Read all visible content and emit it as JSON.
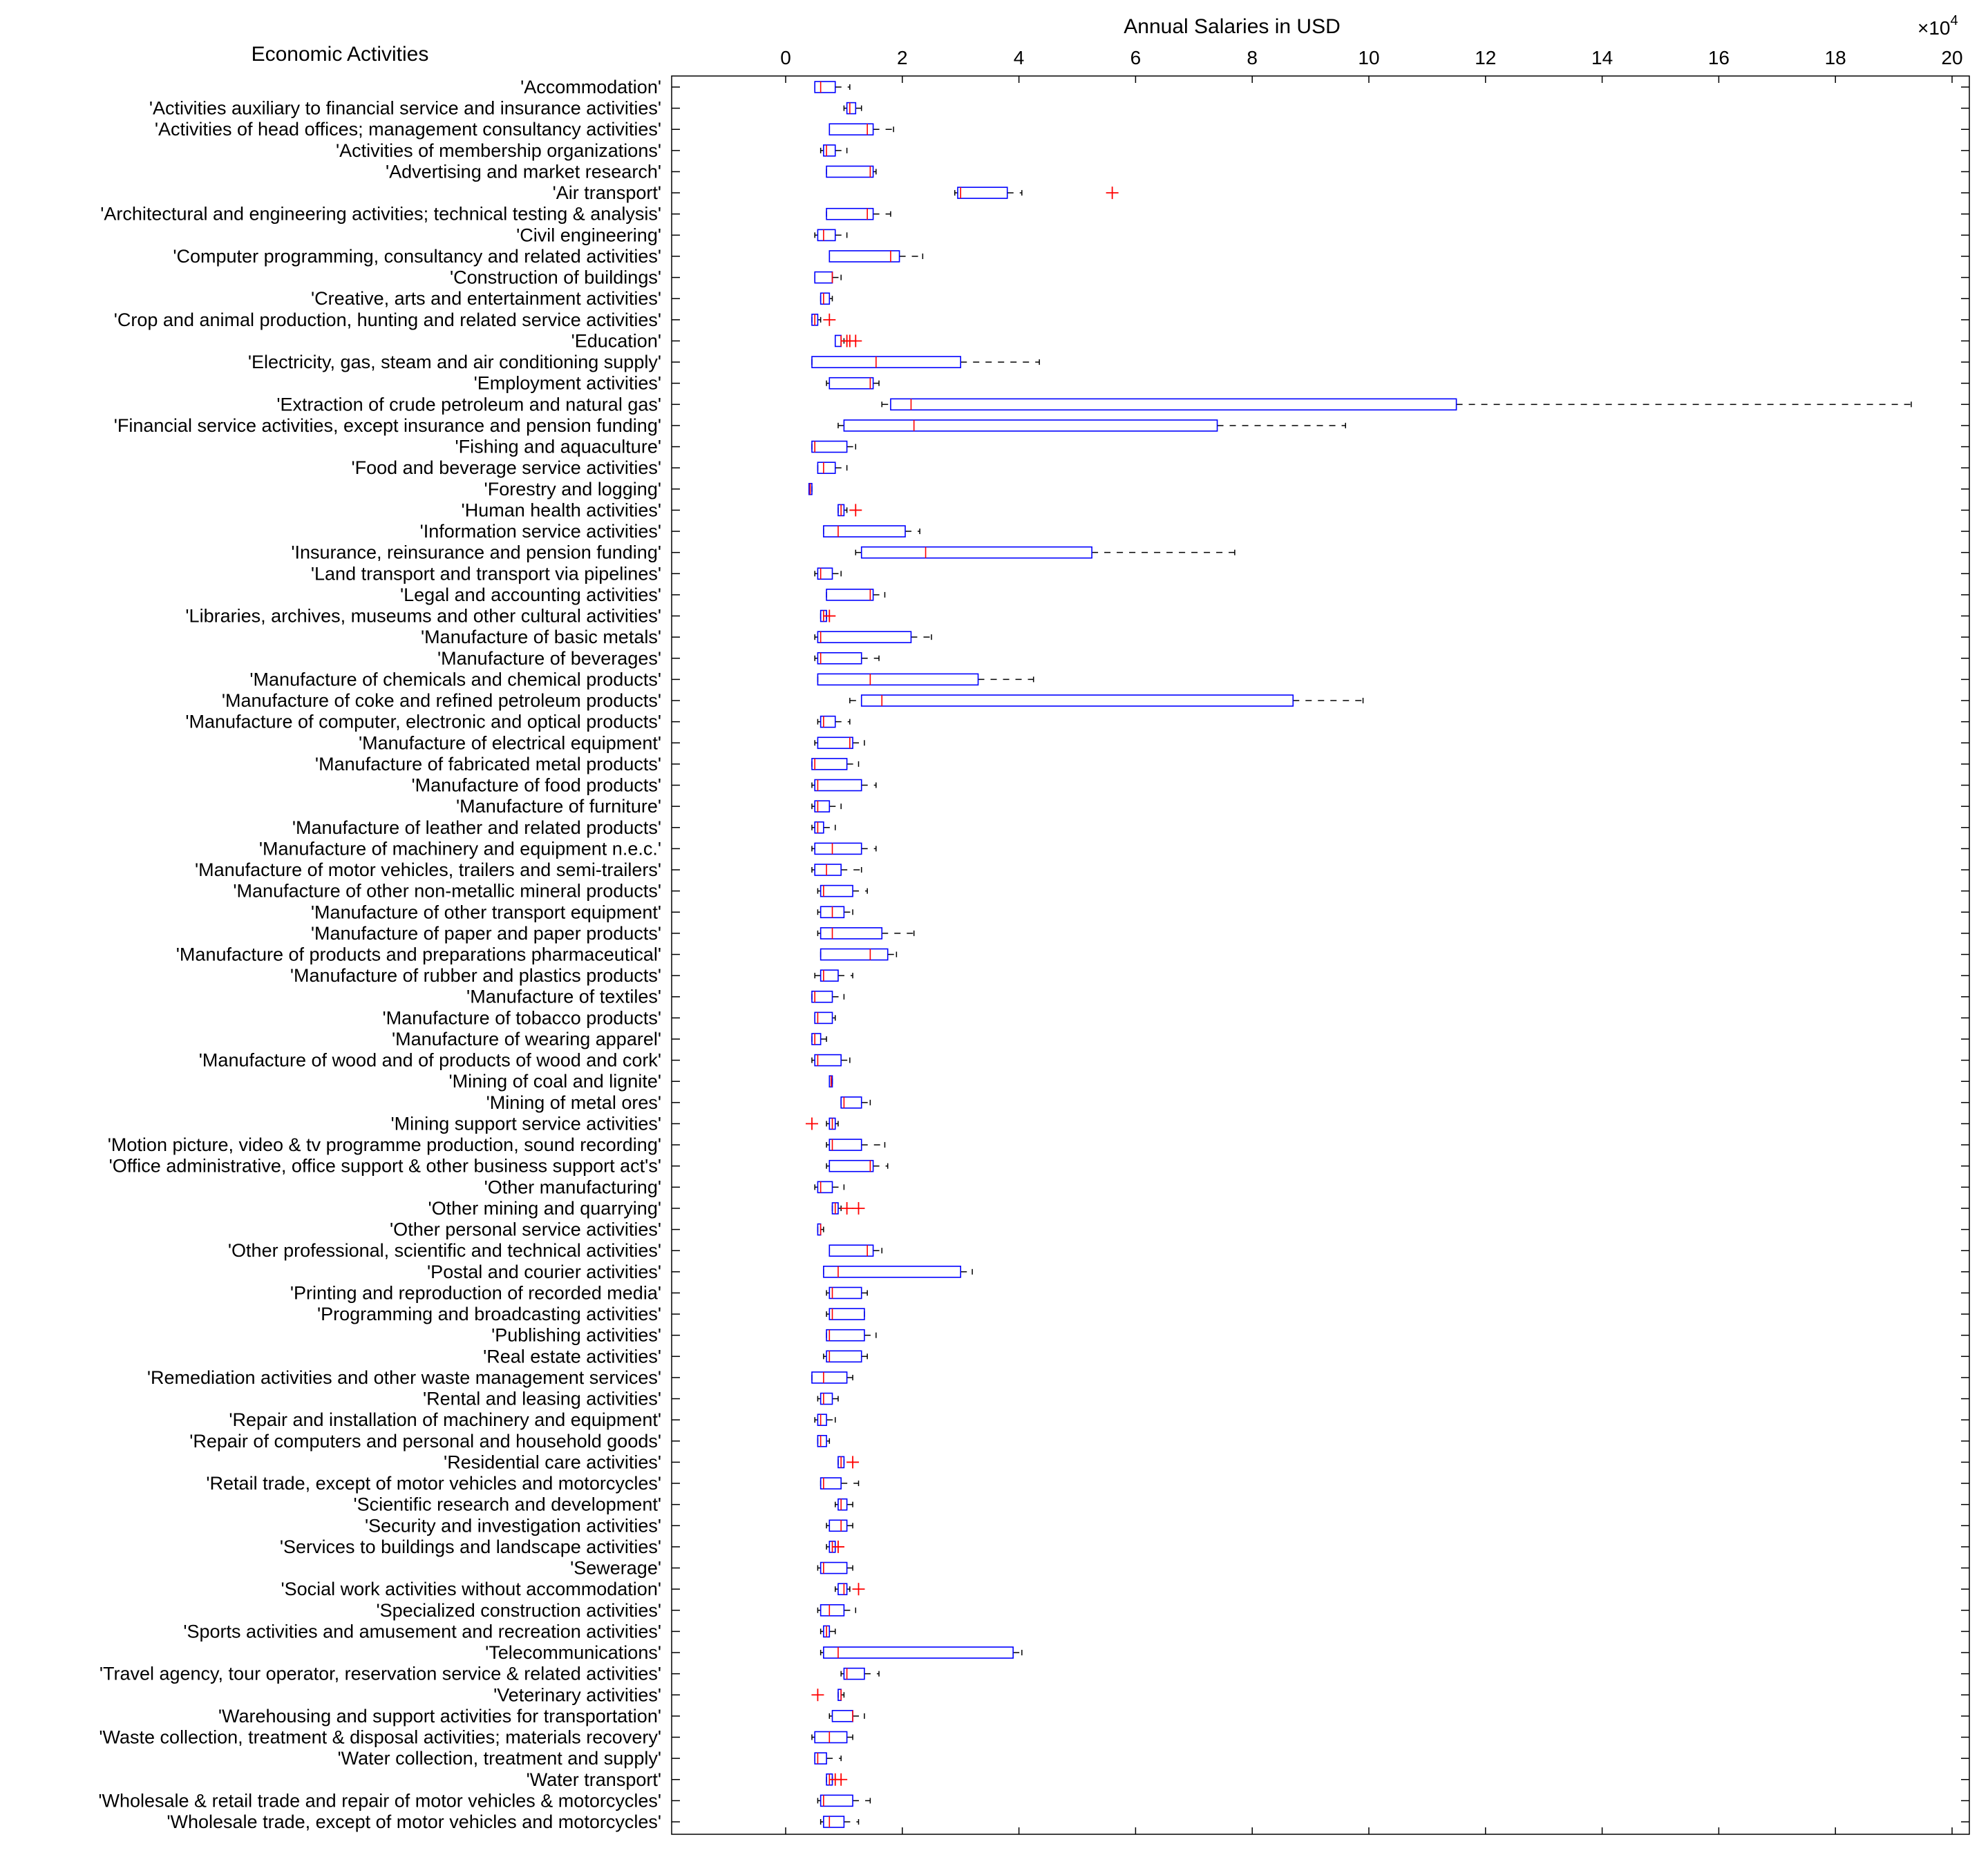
{
  "chart_data": {
    "type": "boxplot",
    "orientation": "horizontal",
    "title": "Annual Salaries in USD",
    "ylabel": "Economic Activities",
    "x_exponent": "×10^4",
    "x_exponent_base": "×10",
    "x_exponent_power": "4",
    "xlim": [
      -2,
      20
    ],
    "xticks": [
      0,
      2,
      4,
      6,
      8,
      10,
      12,
      14,
      16,
      18,
      20
    ],
    "xtick_labels": [
      "0",
      "2",
      "4",
      "6",
      "8",
      "10",
      "12",
      "14",
      "16",
      "18",
      "20"
    ],
    "x_axis_position": "top",
    "grid": false,
    "colors": {
      "box": "#0000ff",
      "median": "#ff0000",
      "whisker": "#000000",
      "outlier": "#ff0000"
    },
    "units": "x 10^4 USD",
    "categories": [
      {
        "label": "'Accommodation'",
        "whislo": 0.5,
        "q1": 0.5,
        "med": 0.6,
        "q3": 0.85,
        "whishi": 1.1,
        "fliers": []
      },
      {
        "label": "'Activities auxiliary to financial service and insurance activities'",
        "whislo": 1.0,
        "q1": 1.05,
        "med": 1.1,
        "q3": 1.2,
        "whishi": 1.3,
        "fliers": []
      },
      {
        "label": "'Activities of head offices; management consultancy activities'",
        "whislo": 0.75,
        "q1": 0.75,
        "med": 1.4,
        "q3": 1.5,
        "whishi": 1.85,
        "fliers": []
      },
      {
        "label": "'Activities of membership organizations'",
        "whislo": 0.6,
        "q1": 0.65,
        "med": 0.7,
        "q3": 0.85,
        "whishi": 1.05,
        "fliers": []
      },
      {
        "label": "'Advertising and market research'",
        "whislo": 0.7,
        "q1": 0.7,
        "med": 1.45,
        "q3": 1.5,
        "whishi": 1.55,
        "fliers": []
      },
      {
        "label": "'Air transport'",
        "whislo": 2.9,
        "q1": 2.95,
        "med": 3.0,
        "q3": 3.8,
        "whishi": 4.05,
        "fliers": [
          5.6
        ]
      },
      {
        "label": "'Architectural and engineering activities; technical testing & analysis'",
        "whislo": 0.7,
        "q1": 0.7,
        "med": 1.4,
        "q3": 1.5,
        "whishi": 1.8,
        "fliers": []
      },
      {
        "label": "'Civil engineering'",
        "whislo": 0.5,
        "q1": 0.55,
        "med": 0.65,
        "q3": 0.85,
        "whishi": 1.05,
        "fliers": []
      },
      {
        "label": "'Computer programming, consultancy and related activities'",
        "whislo": 0.75,
        "q1": 0.75,
        "med": 1.8,
        "q3": 1.95,
        "whishi": 2.35,
        "fliers": []
      },
      {
        "label": "'Construction of buildings'",
        "whislo": 0.5,
        "q1": 0.5,
        "med": 0.8,
        "q3": 0.8,
        "whishi": 0.95,
        "fliers": []
      },
      {
        "label": "'Creative, arts and entertainment activities'",
        "whislo": 0.6,
        "q1": 0.6,
        "med": 0.65,
        "q3": 0.75,
        "whishi": 0.8,
        "fliers": []
      },
      {
        "label": "'Crop and animal production, hunting and related service activities'",
        "whislo": 0.45,
        "q1": 0.45,
        "med": 0.5,
        "q3": 0.55,
        "whishi": 0.6,
        "fliers": [
          0.75
        ]
      },
      {
        "label": "'Education'",
        "whislo": 0.85,
        "q1": 0.85,
        "med": 0.95,
        "q3": 0.95,
        "whishi": 1.0,
        "fliers": [
          1.05,
          1.1,
          1.2
        ]
      },
      {
        "label": "'Electricity, gas, steam and air conditioning supply'",
        "whislo": 0.45,
        "q1": 0.45,
        "med": 1.55,
        "q3": 3.0,
        "whishi": 4.35,
        "fliers": []
      },
      {
        "label": "'Employment activities'",
        "whislo": 0.7,
        "q1": 0.75,
        "med": 1.45,
        "q3": 1.5,
        "whishi": 1.6,
        "fliers": []
      },
      {
        "label": "'Extraction of crude petroleum and natural gas'",
        "whislo": 1.65,
        "q1": 1.8,
        "med": 2.15,
        "q3": 11.5,
        "whishi": 19.3,
        "fliers": []
      },
      {
        "label": "'Financial service activities, except insurance and pension funding'",
        "whislo": 0.9,
        "q1": 1.0,
        "med": 2.2,
        "q3": 7.4,
        "whishi": 9.6,
        "fliers": []
      },
      {
        "label": "'Fishing and aquaculture'",
        "whislo": 0.45,
        "q1": 0.45,
        "med": 0.5,
        "q3": 1.05,
        "whishi": 1.2,
        "fliers": []
      },
      {
        "label": "'Food and beverage service activities'",
        "whislo": 0.55,
        "q1": 0.55,
        "med": 0.65,
        "q3": 0.85,
        "whishi": 1.05,
        "fliers": []
      },
      {
        "label": "'Forestry and logging'",
        "whislo": 0.4,
        "q1": 0.4,
        "med": 0.42,
        "q3": 0.45,
        "whishi": 0.45,
        "fliers": []
      },
      {
        "label": "'Human health activities'",
        "whislo": 0.9,
        "q1": 0.9,
        "med": 0.95,
        "q3": 1.0,
        "whishi": 1.05,
        "fliers": [
          1.2
        ]
      },
      {
        "label": "'Information service activities'",
        "whislo": 0.65,
        "q1": 0.65,
        "med": 0.9,
        "q3": 2.05,
        "whishi": 2.3,
        "fliers": []
      },
      {
        "label": "'Insurance, reinsurance and pension funding'",
        "whislo": 1.2,
        "q1": 1.3,
        "med": 2.4,
        "q3": 5.25,
        "whishi": 7.7,
        "fliers": []
      },
      {
        "label": "'Land transport and transport via pipelines'",
        "whislo": 0.5,
        "q1": 0.55,
        "med": 0.6,
        "q3": 0.8,
        "whishi": 0.95,
        "fliers": []
      },
      {
        "label": "'Legal and accounting activities'",
        "whislo": 0.7,
        "q1": 0.7,
        "med": 1.45,
        "q3": 1.5,
        "whishi": 1.7,
        "fliers": []
      },
      {
        "label": "'Libraries, archives, museums and other cultural activities'",
        "whislo": 0.6,
        "q1": 0.6,
        "med": 0.65,
        "q3": 0.7,
        "whishi": 0.7,
        "fliers": [
          0.75
        ]
      },
      {
        "label": "'Manufacture of basic metals'",
        "whislo": 0.5,
        "q1": 0.55,
        "med": 0.6,
        "q3": 2.15,
        "whishi": 2.5,
        "fliers": []
      },
      {
        "label": "'Manufacture of beverages'",
        "whislo": 0.5,
        "q1": 0.55,
        "med": 0.6,
        "q3": 1.3,
        "whishi": 1.6,
        "fliers": []
      },
      {
        "label": "'Manufacture of chemicals and chemical products'",
        "whislo": 0.55,
        "q1": 0.55,
        "med": 1.45,
        "q3": 3.3,
        "whishi": 4.25,
        "fliers": []
      },
      {
        "label": "'Manufacture of coke and refined petroleum products'",
        "whislo": 1.1,
        "q1": 1.3,
        "med": 1.65,
        "q3": 8.7,
        "whishi": 9.9,
        "fliers": []
      },
      {
        "label": "'Manufacture of computer, electronic and optical products'",
        "whislo": 0.55,
        "q1": 0.6,
        "med": 0.65,
        "q3": 0.85,
        "whishi": 1.1,
        "fliers": []
      },
      {
        "label": "'Manufacture of electrical equipment'",
        "whislo": 0.5,
        "q1": 0.55,
        "med": 1.1,
        "q3": 1.15,
        "whishi": 1.35,
        "fliers": []
      },
      {
        "label": "'Manufacture of fabricated metal products'",
        "whislo": 0.45,
        "q1": 0.45,
        "med": 0.5,
        "q3": 1.05,
        "whishi": 1.25,
        "fliers": []
      },
      {
        "label": "'Manufacture of food products'",
        "whislo": 0.45,
        "q1": 0.5,
        "med": 0.55,
        "q3": 1.3,
        "whishi": 1.55,
        "fliers": []
      },
      {
        "label": "'Manufacture of furniture'",
        "whislo": 0.45,
        "q1": 0.5,
        "med": 0.55,
        "q3": 0.75,
        "whishi": 0.95,
        "fliers": []
      },
      {
        "label": "'Manufacture of leather and related products'",
        "whislo": 0.45,
        "q1": 0.5,
        "med": 0.55,
        "q3": 0.65,
        "whishi": 0.85,
        "fliers": []
      },
      {
        "label": "'Manufacture of machinery and equipment n.e.c.'",
        "whislo": 0.45,
        "q1": 0.5,
        "med": 0.8,
        "q3": 1.3,
        "whishi": 1.55,
        "fliers": []
      },
      {
        "label": "'Manufacture of motor vehicles, trailers and semi-trailers'",
        "whislo": 0.45,
        "q1": 0.5,
        "med": 0.7,
        "q3": 0.95,
        "whishi": 1.3,
        "fliers": []
      },
      {
        "label": "'Manufacture of other non-metallic mineral products'",
        "whislo": 0.55,
        "q1": 0.6,
        "med": 0.65,
        "q3": 1.15,
        "whishi": 1.4,
        "fliers": []
      },
      {
        "label": "'Manufacture of other transport equipment'",
        "whislo": 0.55,
        "q1": 0.6,
        "med": 0.8,
        "q3": 1.0,
        "whishi": 1.15,
        "fliers": []
      },
      {
        "label": "'Manufacture of paper and paper products'",
        "whislo": 0.55,
        "q1": 0.6,
        "med": 0.8,
        "q3": 1.65,
        "whishi": 2.2,
        "fliers": []
      },
      {
        "label": "'Manufacture of products and preparations pharmaceutical'",
        "whislo": 0.6,
        "q1": 0.6,
        "med": 1.45,
        "q3": 1.75,
        "whishi": 1.9,
        "fliers": []
      },
      {
        "label": "'Manufacture of rubber and plastics products'",
        "whislo": 0.5,
        "q1": 0.6,
        "med": 0.65,
        "q3": 0.9,
        "whishi": 1.15,
        "fliers": []
      },
      {
        "label": "'Manufacture of textiles'",
        "whislo": 0.45,
        "q1": 0.45,
        "med": 0.5,
        "q3": 0.8,
        "whishi": 1.0,
        "fliers": []
      },
      {
        "label": "'Manufacture of tobacco products'",
        "whislo": 0.5,
        "q1": 0.5,
        "med": 0.55,
        "q3": 0.8,
        "whishi": 0.85,
        "fliers": []
      },
      {
        "label": "'Manufacture of wearing apparel'",
        "whislo": 0.45,
        "q1": 0.45,
        "med": 0.5,
        "q3": 0.6,
        "whishi": 0.7,
        "fliers": []
      },
      {
        "label": "'Manufacture of wood and of products of wood and cork'",
        "whislo": 0.45,
        "q1": 0.5,
        "med": 0.55,
        "q3": 0.95,
        "whishi": 1.1,
        "fliers": []
      },
      {
        "label": "'Mining of coal and lignite'",
        "whislo": 0.75,
        "q1": 0.75,
        "med": 0.78,
        "q3": 0.8,
        "whishi": 0.8,
        "fliers": []
      },
      {
        "label": "'Mining of metal ores'",
        "whislo": 0.95,
        "q1": 0.95,
        "med": 1.0,
        "q3": 1.3,
        "whishi": 1.45,
        "fliers": []
      },
      {
        "label": "'Mining support service activities'",
        "whislo": 0.7,
        "q1": 0.75,
        "med": 0.8,
        "q3": 0.85,
        "whishi": 0.9,
        "fliers": [
          0.45
        ]
      },
      {
        "label": "'Motion picture, video & tv programme production, sound recording'",
        "whislo": 0.7,
        "q1": 0.75,
        "med": 0.8,
        "q3": 1.3,
        "whishi": 1.7,
        "fliers": []
      },
      {
        "label": "'Office administrative, office support & other business support act's'",
        "whislo": 0.7,
        "q1": 0.75,
        "med": 1.45,
        "q3": 1.5,
        "whishi": 1.75,
        "fliers": []
      },
      {
        "label": "'Other manufacturing'",
        "whislo": 0.5,
        "q1": 0.55,
        "med": 0.6,
        "q3": 0.8,
        "whishi": 1.0,
        "fliers": []
      },
      {
        "label": "'Other mining and quarrying'",
        "whislo": 0.8,
        "q1": 0.8,
        "med": 0.85,
        "q3": 0.9,
        "whishi": 0.95,
        "fliers": [
          1.05,
          1.25
        ]
      },
      {
        "label": "'Other personal service activities'",
        "whislo": 0.55,
        "q1": 0.55,
        "med": 0.6,
        "q3": 0.6,
        "whishi": 0.65,
        "fliers": []
      },
      {
        "label": "'Other professional, scientific and technical activities'",
        "whislo": 0.75,
        "q1": 0.75,
        "med": 1.4,
        "q3": 1.5,
        "whishi": 1.65,
        "fliers": []
      },
      {
        "label": "'Postal and courier activities'",
        "whislo": 0.65,
        "q1": 0.65,
        "med": 0.9,
        "q3": 3.0,
        "whishi": 3.2,
        "fliers": []
      },
      {
        "label": "'Printing and reproduction of recorded media'",
        "whislo": 0.7,
        "q1": 0.75,
        "med": 0.8,
        "q3": 1.3,
        "whishi": 1.4,
        "fliers": []
      },
      {
        "label": "'Programming and broadcasting activities'",
        "whislo": 0.7,
        "q1": 0.75,
        "med": 0.8,
        "q3": 1.35,
        "whishi": 1.35,
        "fliers": []
      },
      {
        "label": "'Publishing activities'",
        "whislo": 0.7,
        "q1": 0.7,
        "med": 0.75,
        "q3": 1.35,
        "whishi": 1.55,
        "fliers": []
      },
      {
        "label": "'Real estate activities'",
        "whislo": 0.65,
        "q1": 0.7,
        "med": 0.75,
        "q3": 1.3,
        "whishi": 1.4,
        "fliers": []
      },
      {
        "label": "'Remediation activities and other waste management services'",
        "whislo": 0.45,
        "q1": 0.45,
        "med": 0.65,
        "q3": 1.05,
        "whishi": 1.15,
        "fliers": []
      },
      {
        "label": "'Rental and leasing activities'",
        "whislo": 0.55,
        "q1": 0.6,
        "med": 0.65,
        "q3": 0.8,
        "whishi": 0.9,
        "fliers": []
      },
      {
        "label": "'Repair and installation of machinery and equipment'",
        "whislo": 0.5,
        "q1": 0.55,
        "med": 0.6,
        "q3": 0.7,
        "whishi": 0.85,
        "fliers": []
      },
      {
        "label": "'Repair of computers and personal and household goods'",
        "whislo": 0.55,
        "q1": 0.55,
        "med": 0.6,
        "q3": 0.7,
        "whishi": 0.75,
        "fliers": []
      },
      {
        "label": "'Residential care activities'",
        "whislo": 0.9,
        "q1": 0.9,
        "med": 0.95,
        "q3": 1.0,
        "whishi": 1.0,
        "fliers": [
          1.15
        ]
      },
      {
        "label": "'Retail trade, except of motor vehicles and motorcycles'",
        "whislo": 0.6,
        "q1": 0.6,
        "med": 0.65,
        "q3": 0.95,
        "whishi": 1.25,
        "fliers": []
      },
      {
        "label": "'Scientific research and development'",
        "whislo": 0.85,
        "q1": 0.9,
        "med": 0.95,
        "q3": 1.05,
        "whishi": 1.15,
        "fliers": []
      },
      {
        "label": "'Security and investigation activities'",
        "whislo": 0.7,
        "q1": 0.75,
        "med": 0.95,
        "q3": 1.05,
        "whishi": 1.15,
        "fliers": []
      },
      {
        "label": "'Services to buildings and landscape activities'",
        "whislo": 0.7,
        "q1": 0.75,
        "med": 0.8,
        "q3": 0.85,
        "whishi": 0.85,
        "fliers": [
          0.9
        ]
      },
      {
        "label": "'Sewerage'",
        "whislo": 0.55,
        "q1": 0.6,
        "med": 0.65,
        "q3": 1.05,
        "whishi": 1.15,
        "fliers": []
      },
      {
        "label": "'Social work activities without accommodation'",
        "whislo": 0.85,
        "q1": 0.9,
        "med": 1.0,
        "q3": 1.05,
        "whishi": 1.1,
        "fliers": [
          1.25
        ]
      },
      {
        "label": "'Specialized construction activities'",
        "whislo": 0.55,
        "q1": 0.6,
        "med": 0.75,
        "q3": 1.0,
        "whishi": 1.2,
        "fliers": []
      },
      {
        "label": "'Sports activities and amusement and recreation activities'",
        "whislo": 0.6,
        "q1": 0.65,
        "med": 0.7,
        "q3": 0.75,
        "whishi": 0.85,
        "fliers": []
      },
      {
        "label": "'Telecommunications'",
        "whislo": 0.6,
        "q1": 0.65,
        "med": 0.9,
        "q3": 3.9,
        "whishi": 4.05,
        "fliers": []
      },
      {
        "label": "'Travel agency, tour operator, reservation service & related activities'",
        "whislo": 0.95,
        "q1": 1.0,
        "med": 1.05,
        "q3": 1.35,
        "whishi": 1.6,
        "fliers": []
      },
      {
        "label": "'Veterinary activities'",
        "whislo": 0.9,
        "q1": 0.9,
        "med": 0.95,
        "q3": 0.95,
        "whishi": 1.0,
        "fliers": [
          0.55
        ]
      },
      {
        "label": "'Warehousing and support activities for transportation'",
        "whislo": 0.75,
        "q1": 0.8,
        "med": 1.15,
        "q3": 1.15,
        "whishi": 1.35,
        "fliers": []
      },
      {
        "label": "'Waste collection, treatment & disposal activities; materials recovery'",
        "whislo": 0.45,
        "q1": 0.5,
        "med": 0.75,
        "q3": 1.05,
        "whishi": 1.15,
        "fliers": []
      },
      {
        "label": "'Water collection, treatment and supply'",
        "whislo": 0.5,
        "q1": 0.5,
        "med": 0.55,
        "q3": 0.7,
        "whishi": 0.95,
        "fliers": []
      },
      {
        "label": "'Water transport'",
        "whislo": 0.7,
        "q1": 0.7,
        "med": 0.75,
        "q3": 0.8,
        "whishi": 0.8,
        "fliers": [
          0.85,
          0.95
        ]
      },
      {
        "label": "'Wholesale & retail trade and repair of motor vehicles & motorcycles'",
        "whislo": 0.55,
        "q1": 0.6,
        "med": 0.65,
        "q3": 1.15,
        "whishi": 1.45,
        "fliers": []
      },
      {
        "label": "'Wholesale trade, except of motor vehicles and motorcycles'",
        "whislo": 0.6,
        "q1": 0.65,
        "med": 0.75,
        "q3": 1.0,
        "whishi": 1.25,
        "fliers": []
      }
    ]
  }
}
